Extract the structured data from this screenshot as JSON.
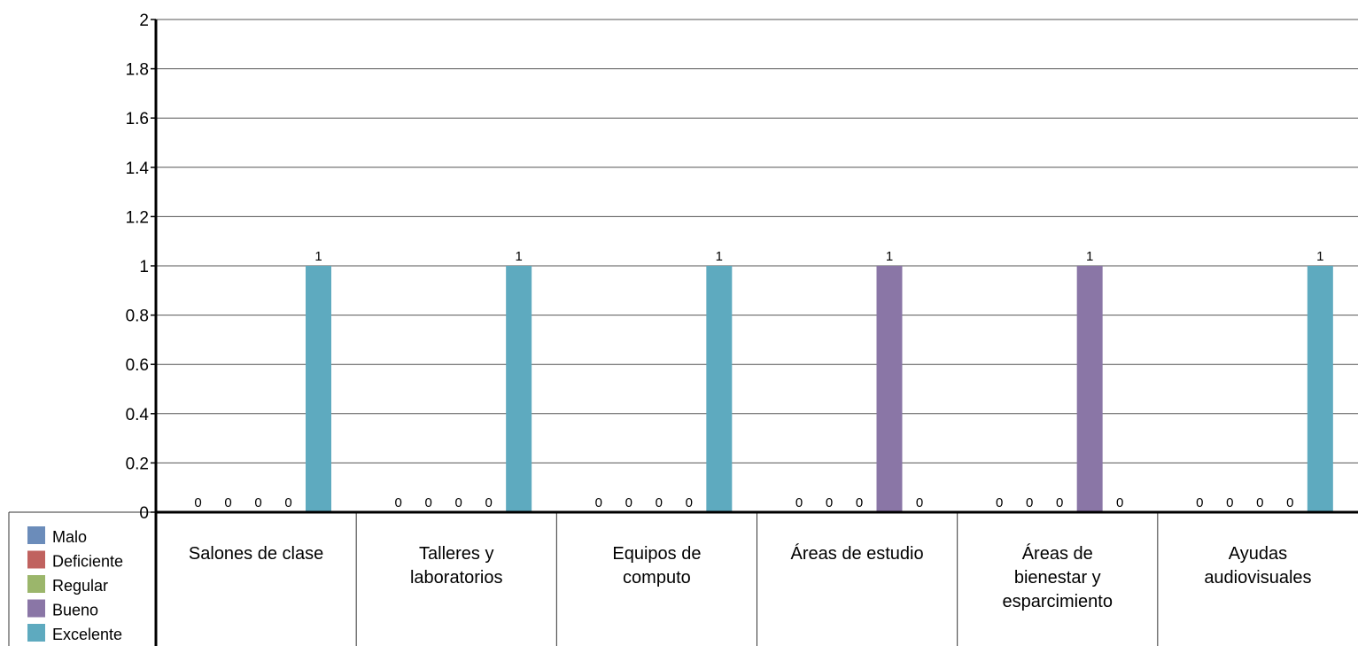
{
  "chart_data": {
    "type": "bar",
    "categories": [
      [
        "Salones de clase"
      ],
      [
        "Talleres y",
        "laboratorios"
      ],
      [
        "Equipos de",
        "computo"
      ],
      [
        "Áreas de estudio"
      ],
      [
        "Áreas de",
        "bienestar y",
        "esparcimiento"
      ],
      [
        "Ayudas",
        "audiovisuales"
      ]
    ],
    "series": [
      {
        "name": "Malo",
        "color": "#6b8cba",
        "values": [
          0,
          0,
          0,
          0,
          0,
          0
        ]
      },
      {
        "name": "Deficiente",
        "color": "#c0625f",
        "values": [
          0,
          0,
          0,
          0,
          0,
          0
        ]
      },
      {
        "name": "Regular",
        "color": "#9bb66b",
        "values": [
          0,
          0,
          0,
          0,
          0,
          0
        ]
      },
      {
        "name": "Bueno",
        "color": "#8a76a6",
        "values": [
          0,
          0,
          0,
          1,
          1,
          0
        ]
      },
      {
        "name": "Excelente",
        "color": "#5eaabf",
        "values": [
          1,
          1,
          1,
          0,
          0,
          1
        ]
      }
    ],
    "ylim": [
      0,
      2
    ],
    "yticks": [
      "0",
      "0.2",
      "0.4",
      "0.6",
      "0.8",
      "1",
      "1.2",
      "1.4",
      "1.6",
      "1.8",
      "2"
    ],
    "grid": true,
    "data_labels": true,
    "legend_position": "bottom-left",
    "title": "",
    "xlabel": "",
    "ylabel": ""
  }
}
